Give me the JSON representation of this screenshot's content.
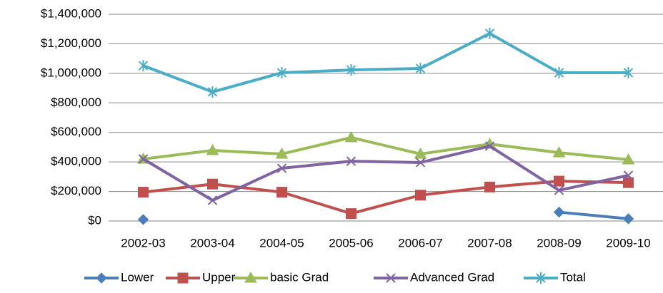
{
  "chart_data": {
    "type": "line",
    "categories": [
      "2002-03",
      "2003-04",
      "2004-05",
      "2005-06",
      "2006-07",
      "2007-08",
      "2008-09",
      "2009-10"
    ],
    "series": [
      {
        "name": "Lower",
        "color": "#4a7ebb",
        "marker": "diamond",
        "values": [
          10000,
          null,
          null,
          null,
          null,
          null,
          60000,
          15000
        ]
      },
      {
        "name": "Upper",
        "color": "#c0504d",
        "marker": "square",
        "values": [
          195000,
          250000,
          195000,
          50000,
          175000,
          230000,
          270000,
          260000
        ]
      },
      {
        "name": "basic Grad",
        "color": "#9bbb59",
        "marker": "triangle",
        "values": [
          420000,
          478000,
          454000,
          565000,
          454000,
          521000,
          463000,
          415000
        ]
      },
      {
        "name": "Advanced Grad",
        "color": "#8064a2",
        "marker": "x",
        "values": [
          420000,
          140000,
          357000,
          405000,
          396000,
          507000,
          208000,
          309000
        ]
      },
      {
        "name": "Total",
        "color": "#4bacc6",
        "marker": "star",
        "values": [
          1052000,
          874000,
          1004000,
          1023000,
          1033000,
          1270000,
          1004000,
          1004000
        ]
      }
    ],
    "ylim": [
      0,
      1400000
    ],
    "yticks": [
      {
        "value": 0,
        "label": "$0"
      },
      {
        "value": 200000,
        "label": "$200,000"
      },
      {
        "value": 400000,
        "label": "$400,000"
      },
      {
        "value": 600000,
        "label": "$600,000"
      },
      {
        "value": 800000,
        "label": "$800,000"
      },
      {
        "value": 1000000,
        "label": "$1,000,000"
      },
      {
        "value": 1200000,
        "label": "$1,200,000"
      },
      {
        "value": 1400000,
        "label": "$1,400,000"
      }
    ],
    "grid": true,
    "legend": "bottom"
  }
}
